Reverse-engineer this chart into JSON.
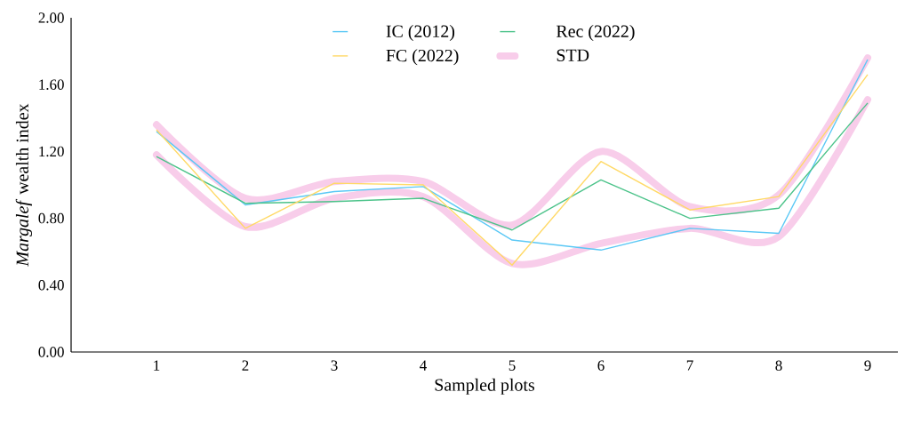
{
  "chart_data": {
    "type": "line",
    "xlabel": "Sampled plots",
    "ylabel": "*Margalef* wealth index",
    "categories": [
      "1",
      "2",
      "3",
      "4",
      "5",
      "6",
      "7",
      "8",
      "9"
    ],
    "ylim": [
      0,
      2
    ],
    "yticks": [
      {
        "value": 0,
        "label": "0.00"
      },
      {
        "value": 0.4,
        "label": "0.40"
      },
      {
        "value": 0.8,
        "label": "0.80"
      },
      {
        "value": 1.2,
        "label": "1.20"
      },
      {
        "value": 1.6,
        "label": "1.60"
      },
      {
        "value": 2,
        "label": "2.00"
      }
    ],
    "legend": "top",
    "grid": false,
    "marker": "none",
    "line_style": "solid",
    "series": [
      {
        "name": "IC (2012)",
        "color": "#5bc8f5",
        "values": [
          1.32,
          0.88,
          0.96,
          0.99,
          0.67,
          0.61,
          0.74,
          0.71,
          1.75
        ]
      },
      {
        "name": "Rec (2022)",
        "color": "#4cc38a",
        "values": [
          1.17,
          0.89,
          0.9,
          0.92,
          0.73,
          1.03,
          0.8,
          0.86,
          1.49
        ]
      },
      {
        "name": "FC (2022)",
        "color": "#ffd966",
        "values": [
          1.33,
          0.74,
          1.01,
          1.0,
          0.52,
          1.14,
          0.85,
          0.93,
          1.66
        ]
      },
      {
        "name": "STD",
        "color": "#f8cdea",
        "values": [
          1.36,
          0.92,
          1.02,
          1.02,
          0.76,
          1.2,
          0.87,
          0.94,
          1.76
        ]
      },
      {
        "color": "#f8cdea",
        "values": [
          1.18,
          0.75,
          0.92,
          0.93,
          0.53,
          0.65,
          0.74,
          0.69,
          1.51
        ]
      }
    ]
  }
}
